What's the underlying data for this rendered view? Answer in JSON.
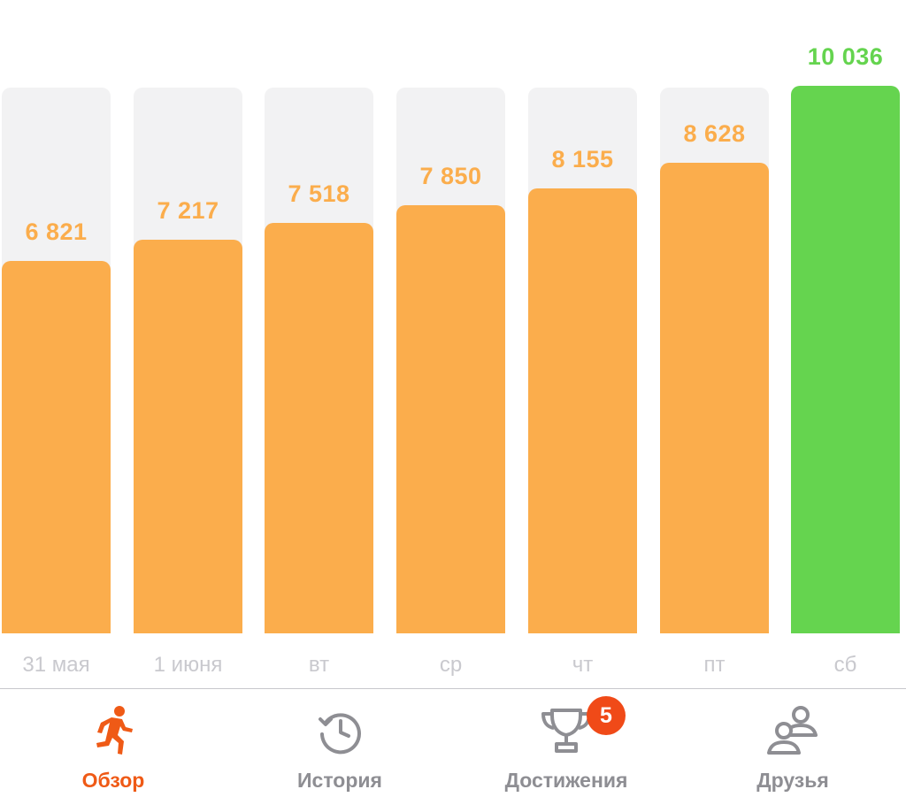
{
  "chart_data": {
    "type": "bar",
    "categories": [
      "31 мая",
      "1 июня",
      "вт",
      "ср",
      "чт",
      "пт",
      "сб"
    ],
    "values": [
      6821,
      7217,
      7518,
      7850,
      8155,
      8628,
      10036
    ],
    "value_labels": [
      "6 821",
      "7 217",
      "7 518",
      "7 850",
      "8 155",
      "8 628",
      "10 036"
    ],
    "goal": 10000,
    "ylim": [
      0,
      10036
    ],
    "colors": {
      "below_goal": "#fbad4c",
      "goal_reached": "#65d44f",
      "track": "#f2f2f3"
    }
  },
  "tabbar": {
    "tabs": [
      {
        "label": "Обзор",
        "icon": "running-person-icon",
        "active": true
      },
      {
        "label": "История",
        "icon": "history-clock-icon",
        "active": false
      },
      {
        "label": "Достижения",
        "icon": "trophy-icon",
        "active": false,
        "badge": "5"
      },
      {
        "label": "Друзья",
        "icon": "friends-icon",
        "active": false
      }
    ]
  }
}
